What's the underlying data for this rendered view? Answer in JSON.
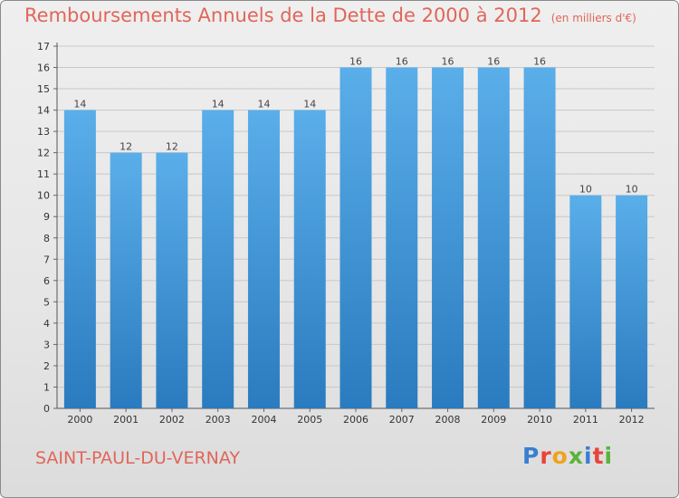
{
  "header": {
    "title": "Remboursements Annuels de la Dette de 2000 à 2012",
    "subtitle": "(en milliers d'€)"
  },
  "footer": {
    "city": "SAINT-PAUL-DU-VERNAY",
    "brand": "Proxiti"
  },
  "colors": {
    "title": "#e0665a",
    "bar_top": "#5aaee9",
    "bar_bottom": "#2a7bbf",
    "grid": "#c8c8c8"
  },
  "chart_data": {
    "type": "bar",
    "categories": [
      "2000",
      "2001",
      "2002",
      "2003",
      "2004",
      "2005",
      "2006",
      "2007",
      "2008",
      "2009",
      "2010",
      "2011",
      "2012"
    ],
    "values": [
      14,
      12,
      12,
      14,
      14,
      14,
      16,
      16,
      16,
      16,
      16,
      10,
      10
    ],
    "title": "Remboursements Annuels de la Dette de 2000 à 2012",
    "xlabel": "",
    "ylabel": "",
    "ylim": [
      0,
      17
    ],
    "yticks": [
      0,
      1,
      2,
      3,
      4,
      5,
      6,
      7,
      8,
      9,
      10,
      11,
      12,
      13,
      14,
      15,
      16,
      17
    ],
    "grid": true,
    "data_labels": true
  }
}
